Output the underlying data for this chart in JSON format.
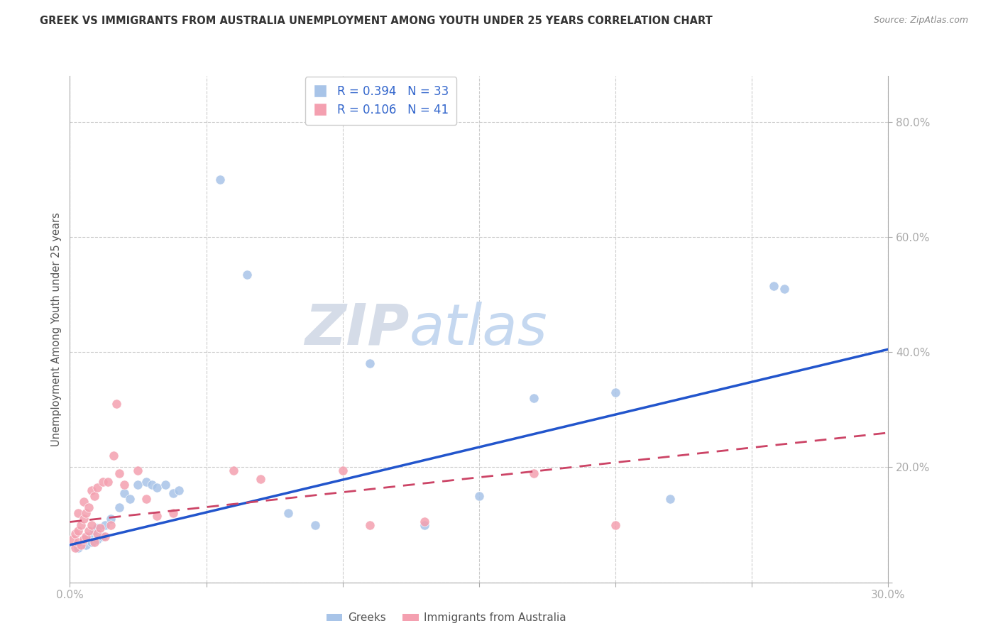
{
  "title": "GREEK VS IMMIGRANTS FROM AUSTRALIA UNEMPLOYMENT AMONG YOUTH UNDER 25 YEARS CORRELATION CHART",
  "source": "Source: ZipAtlas.com",
  "ylabel": "Unemployment Among Youth under 25 years",
  "xlim": [
    0.0,
    0.3
  ],
  "ylim": [
    0.0,
    0.88
  ],
  "greeks_R": 0.394,
  "greeks_N": 33,
  "immigrants_R": 0.106,
  "immigrants_N": 41,
  "greeks_color": "#a8c4e8",
  "immigrants_color": "#f4a0b0",
  "trend_blue": "#2255cc",
  "trend_pink": "#cc4466",
  "legend_label_1": "Greeks",
  "legend_label_2": "Immigrants from Australia",
  "watermark_zip": "ZIP",
  "watermark_atlas": "atlas",
  "greeks_x": [
    0.003,
    0.005,
    0.006,
    0.007,
    0.008,
    0.009,
    0.01,
    0.01,
    0.012,
    0.013,
    0.015,
    0.018,
    0.02,
    0.022,
    0.025,
    0.028,
    0.03,
    0.032,
    0.035,
    0.038,
    0.04,
    0.055,
    0.065,
    0.08,
    0.09,
    0.11,
    0.13,
    0.15,
    0.17,
    0.2,
    0.22,
    0.258,
    0.262
  ],
  "greeks_y": [
    0.06,
    0.075,
    0.065,
    0.08,
    0.07,
    0.09,
    0.075,
    0.095,
    0.08,
    0.1,
    0.11,
    0.13,
    0.155,
    0.145,
    0.17,
    0.175,
    0.17,
    0.165,
    0.17,
    0.155,
    0.16,
    0.7,
    0.535,
    0.12,
    0.1,
    0.38,
    0.1,
    0.15,
    0.32,
    0.33,
    0.145,
    0.515,
    0.51
  ],
  "immigrants_x": [
    0.001,
    0.002,
    0.002,
    0.003,
    0.003,
    0.003,
    0.004,
    0.004,
    0.005,
    0.005,
    0.005,
    0.006,
    0.006,
    0.007,
    0.007,
    0.008,
    0.008,
    0.009,
    0.009,
    0.01,
    0.01,
    0.011,
    0.012,
    0.013,
    0.014,
    0.015,
    0.016,
    0.017,
    0.018,
    0.02,
    0.025,
    0.028,
    0.032,
    0.038,
    0.06,
    0.07,
    0.1,
    0.11,
    0.13,
    0.17,
    0.2
  ],
  "immigrants_y": [
    0.075,
    0.06,
    0.085,
    0.07,
    0.09,
    0.12,
    0.065,
    0.1,
    0.075,
    0.11,
    0.14,
    0.08,
    0.12,
    0.09,
    0.13,
    0.1,
    0.16,
    0.07,
    0.15,
    0.085,
    0.165,
    0.095,
    0.175,
    0.08,
    0.175,
    0.1,
    0.22,
    0.31,
    0.19,
    0.17,
    0.195,
    0.145,
    0.115,
    0.12,
    0.195,
    0.18,
    0.195,
    0.1,
    0.105,
    0.19,
    0.1
  ],
  "blue_line_x": [
    0.0,
    0.3
  ],
  "blue_line_y": [
    0.065,
    0.405
  ],
  "pink_line_x": [
    0.0,
    0.3
  ],
  "pink_line_y": [
    0.105,
    0.26
  ]
}
